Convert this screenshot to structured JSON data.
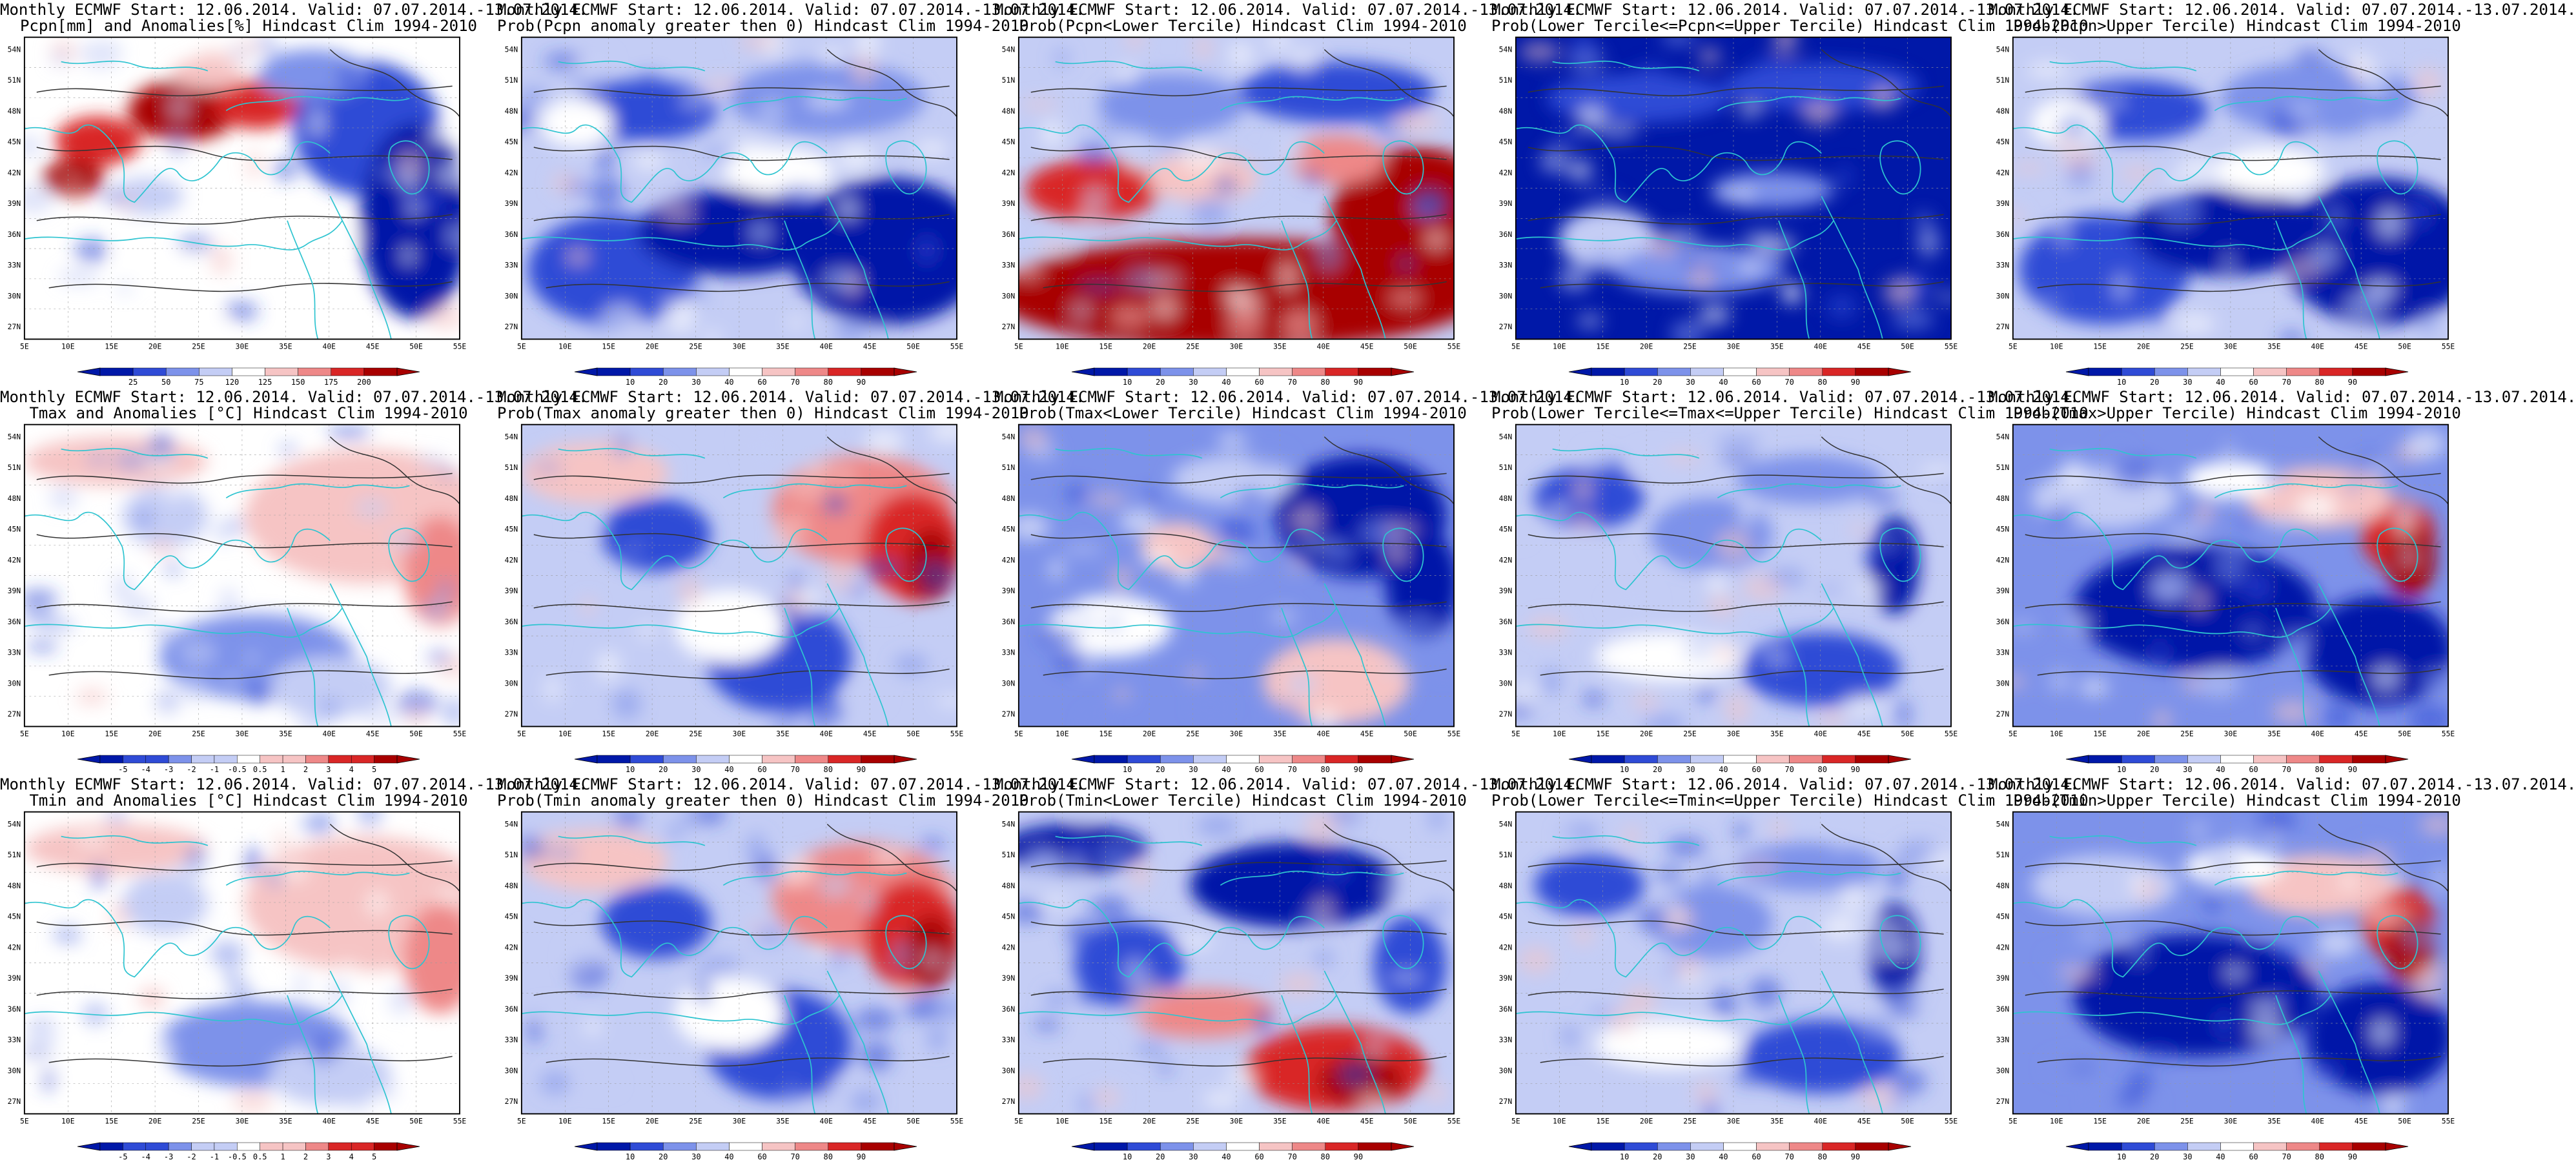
{
  "colors": {
    "deep_blue": "#0018a8",
    "blue": "#2f4bd6",
    "mid_blue": "#7d92ea",
    "light_blue": "#c4cdf5",
    "white": "#ffffff",
    "light_red": "#f6c4c4",
    "mid_red": "#ee8888",
    "red": "#d92626",
    "deep_red": "#a80000",
    "coast": "#2ec4d0",
    "contour": "#333333"
  },
  "lat_ticks": [
    "54N",
    "51N",
    "48N",
    "45N",
    "42N",
    "39N",
    "36N",
    "33N",
    "30N",
    "27N"
  ],
  "lon_ticks": [
    "5E",
    "10E",
    "15E",
    "20E",
    "25E",
    "30E",
    "35E",
    "40E",
    "45E",
    "50E",
    "55E"
  ],
  "panels": [
    {
      "title1": "Monthly ECMWF Start: 12.06.2014. Valid: 07.07.2014.-13.07.2014.",
      "title2": "Pcpn[mm] and Anomalies[%] Hindcast Clim 1994-2010",
      "scheme": "anom_precip",
      "cbar": [
        "25",
        "50",
        "75",
        "120",
        "125",
        "150",
        "175",
        "200"
      ]
    },
    {
      "title1": "Monthly ECMWF Start: 12.06.2014. Valid: 07.07.2014.-13.07.2014.",
      "title2": "Prob(Pcpn anomaly greater then 0) Hindcast Clim 1994-2010",
      "scheme": "prob_low",
      "cbar": [
        "10",
        "20",
        "30",
        "40",
        "60",
        "70",
        "80",
        "90"
      ]
    },
    {
      "title1": "Monthly ECMWF Start: 12.06.2014. Valid: 07.07.2014.-13.07.2014.",
      "title2": "Prob(Pcpn<Lower Tercile) Hindcast Clim 1994-2010",
      "scheme": "prob_high_south",
      "cbar": [
        "10",
        "20",
        "30",
        "40",
        "60",
        "70",
        "80",
        "90"
      ]
    },
    {
      "title1": "Monthly ECMWF Start: 12.06.2014. Valid: 07.07.2014.-13.07.2014.",
      "title2": "Prob(Lower Tercile<=Pcpn<=Upper Tercile) Hindcast Clim 1994-2010",
      "scheme": "prob_verylow",
      "cbar": [
        "10",
        "20",
        "30",
        "40",
        "60",
        "70",
        "80",
        "90"
      ]
    },
    {
      "title1": "Monthly ECMWF Start: 12.06.2014. Valid: 07.07.2014.-13.07.2014.",
      "title2": "Prob(Pcpn>Upper Tercile) Hindcast Clim 1994-2010",
      "scheme": "prob_low",
      "cbar": [
        "10",
        "20",
        "30",
        "40",
        "60",
        "70",
        "80",
        "90"
      ]
    },
    {
      "title1": "Monthly ECMWF Start: 12.06.2014. Valid: 07.07.2014.-13.07.2014.",
      "title2": "Tmax and Anomalies [°C] Hindcast Clim 1994-2010",
      "scheme": "anom_temp",
      "cbar": [
        "-5",
        "-4",
        "-3",
        "-2",
        "-1",
        "-0.5",
        "0.5",
        "1",
        "2",
        "3",
        "4",
        "5"
      ]
    },
    {
      "title1": "Monthly ECMWF Start: 12.06.2014. Valid: 07.07.2014.-13.07.2014.",
      "title2": "Prob(Tmax anomaly greater then 0) Hindcast Clim 1994-2010",
      "scheme": "prob_mixed_east",
      "cbar": [
        "10",
        "20",
        "30",
        "40",
        "60",
        "70",
        "80",
        "90"
      ]
    },
    {
      "title1": "Monthly ECMWF Start: 12.06.2014. Valid: 07.07.2014.-13.07.2014.",
      "title2": "Prob(Tmax<Lower Tercile) Hindcast Clim 1994-2010",
      "scheme": "prob_blue_mixed",
      "cbar": [
        "10",
        "20",
        "30",
        "40",
        "60",
        "70",
        "80",
        "90"
      ]
    },
    {
      "title1": "Monthly ECMWF Start: 12.06.2014. Valid: 07.07.2014.-13.07.2014.",
      "title2": "Prob(Lower Tercile<=Tmax<=Upper Tercile) Hindcast Clim 1994-2010",
      "scheme": "prob_blue_light",
      "cbar": [
        "10",
        "20",
        "30",
        "40",
        "60",
        "70",
        "80",
        "90"
      ]
    },
    {
      "title1": "Monthly ECMWF Start: 12.06.2014. Valid: 07.07.2014.-13.07.2014.",
      "title2": "Prob(Tmax>Upper Tercile) Hindcast Clim 1994-2010",
      "scheme": "prob_blue_east_red",
      "cbar": [
        "10",
        "20",
        "30",
        "40",
        "60",
        "70",
        "80",
        "90"
      ]
    },
    {
      "title1": "Monthly ECMWF Start: 12.06.2014. Valid: 07.07.2014.-13.07.2014.",
      "title2": "Tmin and Anomalies [°C] Hindcast Clim 1994-2010",
      "scheme": "anom_temp",
      "cbar": [
        "-5",
        "-4",
        "-3",
        "-2",
        "-1",
        "-0.5",
        "0.5",
        "1",
        "2",
        "3",
        "4",
        "5"
      ]
    },
    {
      "title1": "Monthly ECMWF Start: 12.06.2014. Valid: 07.07.2014.-13.07.2014.",
      "title2": "Prob(Tmin anomaly greater then 0) Hindcast Clim 1994-2010",
      "scheme": "prob_mixed_east",
      "cbar": [
        "10",
        "20",
        "30",
        "40",
        "60",
        "70",
        "80",
        "90"
      ]
    },
    {
      "title1": "Monthly ECMWF Start: 12.06.2014. Valid: 07.07.2014.-13.07.2014.",
      "title2": "Prob(Tmin<Lower Tercile) Hindcast Clim 1994-2010",
      "scheme": "prob_blue_south_red",
      "cbar": [
        "10",
        "20",
        "30",
        "40",
        "60",
        "70",
        "80",
        "90"
      ]
    },
    {
      "title1": "Monthly ECMWF Start: 12.06.2014. Valid: 07.07.2014.-13.07.2014.",
      "title2": "Prob(Lower Tercile<=Tmin<=Upper Tercile) Hindcast Clim 1994-2010",
      "scheme": "prob_blue_light",
      "cbar": [
        "10",
        "20",
        "30",
        "40",
        "60",
        "70",
        "80",
        "90"
      ]
    },
    {
      "title1": "Monthly ECMWF Start: 12.06.2014. Valid: 07.07.2014.-13.07.2014.",
      "title2": "Prob(Tmin>Upper Tercile) Hindcast Clim 1994-2010",
      "scheme": "prob_blue_east_red",
      "cbar": [
        "10",
        "20",
        "30",
        "40",
        "60",
        "70",
        "80",
        "90"
      ]
    }
  ]
}
